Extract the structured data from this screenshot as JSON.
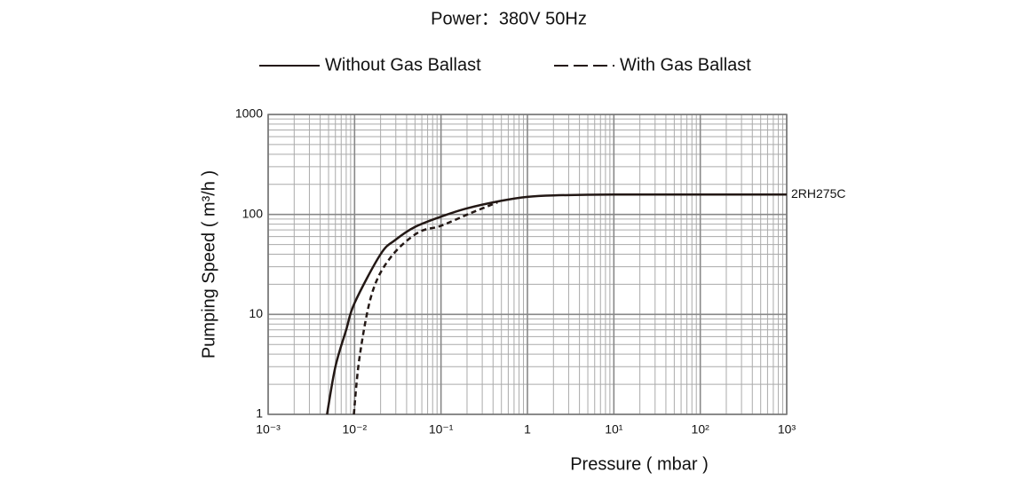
{
  "chart_data": {
    "type": "line",
    "title": "Power：380V 50Hz",
    "xlabel": "Pressure ( mbar )",
    "ylabel": "Pumping Speed ( m³/h )",
    "log_x": true,
    "log_y": true,
    "grid": true,
    "minor_grid": true,
    "xlim": [
      0.001,
      1000
    ],
    "ylim": [
      1,
      1000
    ],
    "xticks": [
      {
        "value": 0.001,
        "label": "10⁻³"
      },
      {
        "value": 0.01,
        "label": "10⁻²"
      },
      {
        "value": 0.1,
        "label": "10⁻¹"
      },
      1,
      {
        "value": 10,
        "label": "10¹"
      },
      {
        "value": 100,
        "label": "10²"
      },
      {
        "value": 1000,
        "label": "10³"
      }
    ],
    "yticks": [
      1,
      10,
      100,
      1000
    ],
    "legend": "top",
    "annotation": "2RH275C",
    "series": [
      {
        "name": "Without Gas Ballast",
        "color": "#231815",
        "dash": "solid",
        "x": [
          0.0048,
          0.006,
          0.008,
          0.01,
          0.02,
          0.03,
          0.05,
          0.1,
          0.2,
          0.5,
          1,
          2,
          10,
          100,
          1000
        ],
        "values": [
          1,
          3,
          7,
          13,
          40,
          56,
          75,
          95,
          115,
          137,
          150,
          155,
          158,
          158,
          158
        ]
      },
      {
        "name": "With Gas Ballast",
        "color": "#231815",
        "dash": "dashed",
        "x": [
          0.0098,
          0.0115,
          0.016,
          0.026,
          0.053,
          0.1,
          0.22,
          0.45
        ],
        "values": [
          1,
          3.9,
          16.5,
          37,
          65,
          77,
          103,
          132
        ]
      }
    ]
  }
}
